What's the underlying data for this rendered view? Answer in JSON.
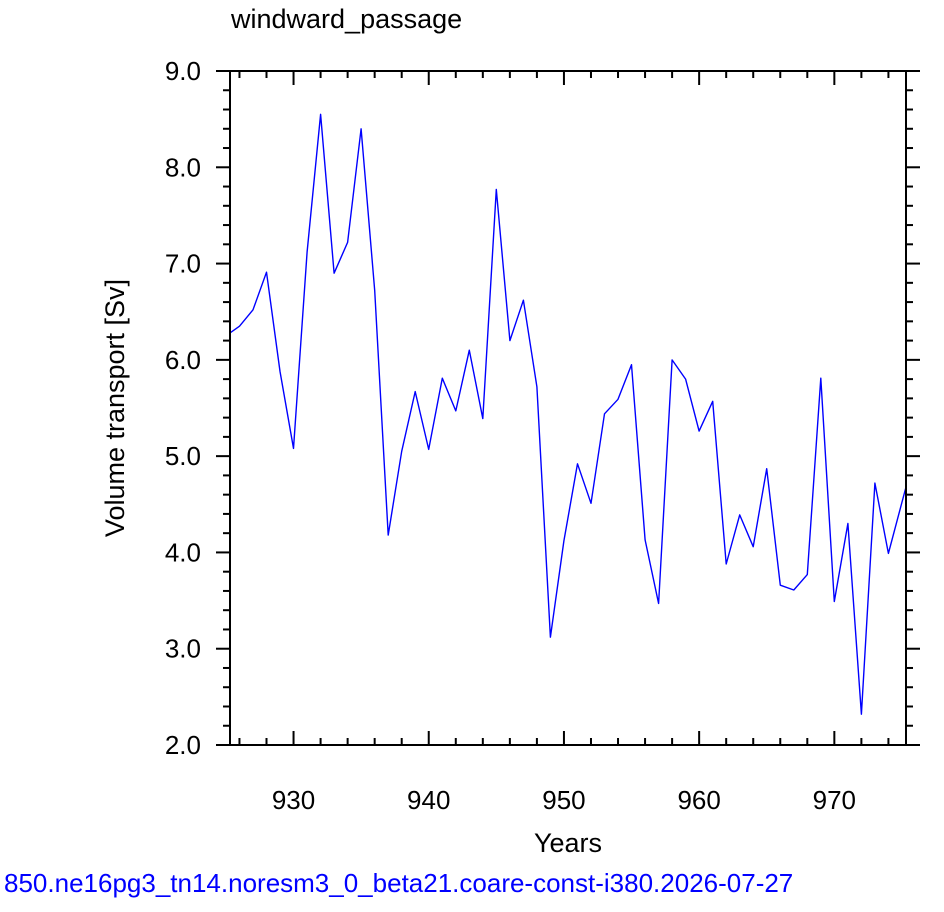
{
  "chart_data": {
    "type": "line",
    "title": "windward_passage",
    "xlabel": "Years",
    "ylabel": "Volume transport [Sv]",
    "xlim": [
      925.3,
      975.3
    ],
    "ylim": [
      2.0,
      9.0
    ],
    "xticks": [
      930,
      940,
      950,
      960,
      970
    ],
    "xtick_labels": [
      "930",
      "940",
      "950",
      "960",
      "970"
    ],
    "yticks": [
      2.0,
      3.0,
      4.0,
      5.0,
      6.0,
      7.0,
      8.0,
      9.0
    ],
    "ytick_labels": [
      "2.0",
      "3.0",
      "4.0",
      "5.0",
      "6.0",
      "7.0",
      "8.0",
      "9.0"
    ],
    "grid": false,
    "line_color": "#0000ff",
    "x": [
      925.3,
      926,
      927,
      928,
      929,
      930,
      931,
      932,
      933,
      934,
      935,
      936,
      937,
      938,
      939,
      940,
      941,
      942,
      943,
      944,
      945,
      946,
      947,
      948,
      949,
      950,
      951,
      952,
      953,
      954,
      955,
      956,
      957,
      958,
      959,
      960,
      961,
      962,
      963,
      964,
      965,
      966,
      967,
      968,
      969,
      970,
      971,
      972,
      973,
      974,
      975.3
    ],
    "y": [
      6.28,
      6.35,
      6.52,
      6.91,
      5.88,
      5.08,
      7.12,
      8.55,
      6.9,
      7.22,
      8.4,
      6.72,
      4.18,
      5.05,
      5.67,
      5.07,
      5.81,
      5.47,
      6.1,
      5.39,
      7.77,
      6.2,
      6.62,
      5.72,
      3.12,
      4.12,
      4.92,
      4.51,
      5.44,
      5.59,
      5.95,
      4.13,
      3.47,
      6.0,
      5.8,
      5.26,
      5.57,
      3.88,
      4.39,
      4.06,
      4.87,
      3.66,
      3.61,
      3.77,
      5.81,
      3.49,
      4.3,
      2.32,
      4.72,
      3.99,
      4.68
    ]
  },
  "footer": {
    "text": "850.ne16pg3_tn14.noresm3_0_beta21.coare-const-i380.2026-07-27",
    "color": "#0000ff"
  }
}
